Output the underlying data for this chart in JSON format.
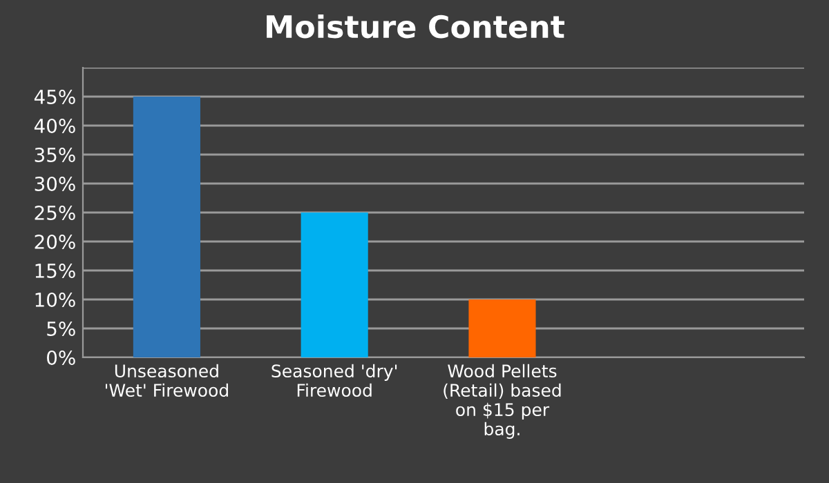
{
  "chart_data": {
    "type": "bar",
    "title": "Moisture Content",
    "categories": [
      "Unseasoned\n'Wet' Firewood",
      "Seasoned 'dry'\nFirewood",
      "Wood Pellets\n(Retail) based\non $15 per\nbag."
    ],
    "values": [
      45,
      25,
      10
    ],
    "colors": [
      "#2e75b6",
      "#00b0f0",
      "#ff6600"
    ],
    "ylim": [
      0,
      50
    ],
    "yticks": [
      {
        "value": 0,
        "label": "0%"
      },
      {
        "value": 5,
        "label": "5%"
      },
      {
        "value": 10,
        "label": "10%"
      },
      {
        "value": 15,
        "label": "15%"
      },
      {
        "value": 20,
        "label": "20%"
      },
      {
        "value": 25,
        "label": "25%"
      },
      {
        "value": 30,
        "label": "30%"
      },
      {
        "value": 35,
        "label": "35%"
      },
      {
        "value": 40,
        "label": "40%"
      },
      {
        "value": 45,
        "label": "45%"
      },
      {
        "value": 50,
        "label": null
      }
    ],
    "grid": "y",
    "legend": false
  }
}
